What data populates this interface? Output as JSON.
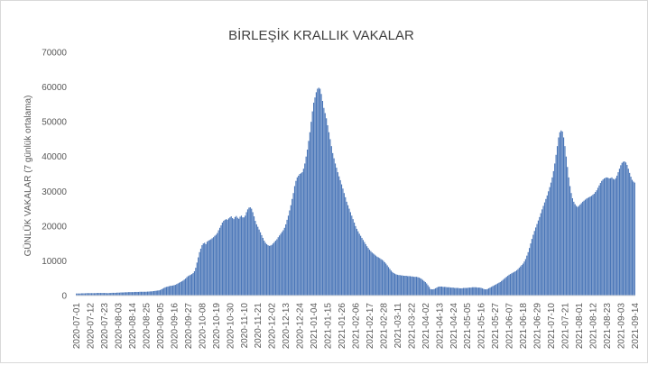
{
  "chart_data": {
    "type": "bar",
    "title": "BİRLEŞİK KRALLIK VAKALAR",
    "y_label": "GÜNLÜK  VAKALAR  (7 günlük ortalama)",
    "color": "#4a76b8",
    "grid": false,
    "ylim": [
      0,
      70000
    ],
    "yticks": [
      0,
      10000,
      20000,
      30000,
      40000,
      50000,
      60000,
      70000
    ],
    "categories": [
      "2020-07-01",
      null,
      null,
      null,
      null,
      null,
      null,
      null,
      null,
      null,
      null,
      "2020-07-12",
      null,
      null,
      null,
      null,
      null,
      null,
      null,
      null,
      null,
      null,
      "2020-07-23",
      null,
      null,
      null,
      null,
      null,
      null,
      null,
      null,
      null,
      null,
      "2020-08-03",
      null,
      null,
      null,
      null,
      null,
      null,
      null,
      null,
      null,
      null,
      "2020-08-14",
      null,
      null,
      null,
      null,
      null,
      null,
      null,
      null,
      null,
      null,
      "2020-08-25",
      null,
      null,
      null,
      null,
      null,
      null,
      null,
      null,
      null,
      null,
      "2020-09-05",
      null,
      null,
      null,
      null,
      null,
      null,
      null,
      null,
      null,
      null,
      "2020-09-16",
      null,
      null,
      null,
      null,
      null,
      null,
      null,
      null,
      null,
      null,
      "2020-09-27",
      null,
      null,
      null,
      null,
      null,
      null,
      null,
      null,
      null,
      null,
      "2020-10-08",
      null,
      null,
      null,
      null,
      null,
      null,
      null,
      null,
      null,
      null,
      "2020-10-19",
      null,
      null,
      null,
      null,
      null,
      null,
      null,
      null,
      null,
      null,
      "2020-10-30",
      null,
      null,
      null,
      null,
      null,
      null,
      null,
      null,
      null,
      null,
      "2020-11-10",
      null,
      null,
      null,
      null,
      null,
      null,
      null,
      null,
      null,
      null,
      "2020-11-21",
      null,
      null,
      null,
      null,
      null,
      null,
      null,
      null,
      null,
      null,
      "2020-12-02",
      null,
      null,
      null,
      null,
      null,
      null,
      null,
      null,
      null,
      null,
      "2020-12-13",
      null,
      null,
      null,
      null,
      null,
      null,
      null,
      null,
      null,
      null,
      "2020-12-24",
      null,
      null,
      null,
      null,
      null,
      null,
      null,
      null,
      null,
      null,
      "2021-01-04",
      null,
      null,
      null,
      null,
      null,
      null,
      null,
      null,
      null,
      null,
      "2021-01-15",
      null,
      null,
      null,
      null,
      null,
      null,
      null,
      null,
      null,
      null,
      "2021-01-26",
      null,
      null,
      null,
      null,
      null,
      null,
      null,
      null,
      null,
      null,
      "2021-02-06",
      null,
      null,
      null,
      null,
      null,
      null,
      null,
      null,
      null,
      null,
      "2021-02-17",
      null,
      null,
      null,
      null,
      null,
      null,
      null,
      null,
      null,
      null,
      "2021-02-28",
      null,
      null,
      null,
      null,
      null,
      null,
      null,
      null,
      null,
      null,
      "2021-03-11",
      null,
      null,
      null,
      null,
      null,
      null,
      null,
      null,
      null,
      null,
      "2021-03-22",
      null,
      null,
      null,
      null,
      null,
      null,
      null,
      null,
      null,
      null,
      "2021-04-02",
      null,
      null,
      null,
      null,
      null,
      null,
      null,
      null,
      null,
      null,
      "2021-04-13",
      null,
      null,
      null,
      null,
      null,
      null,
      null,
      null,
      null,
      null,
      "2021-04-24",
      null,
      null,
      null,
      null,
      null,
      null,
      null,
      null,
      null,
      null,
      "2021-05-05",
      null,
      null,
      null,
      null,
      null,
      null,
      null,
      null,
      null,
      null,
      "2021-05-16",
      null,
      null,
      null,
      null,
      null,
      null,
      null,
      null,
      null,
      null,
      "2021-05-27",
      null,
      null,
      null,
      null,
      null,
      null,
      null,
      null,
      null,
      null,
      "2021-06-07",
      null,
      null,
      null,
      null,
      null,
      null,
      null,
      null,
      null,
      null,
      "2021-06-18",
      null,
      null,
      null,
      null,
      null,
      null,
      null,
      null,
      null,
      null,
      "2021-06-29",
      null,
      null,
      null,
      null,
      null,
      null,
      null,
      null,
      null,
      null,
      "2021-07-10",
      null,
      null,
      null,
      null,
      null,
      null,
      null,
      null,
      null,
      null,
      "2021-07-21",
      null,
      null,
      null,
      null,
      null,
      null,
      null,
      null,
      null,
      null,
      "2021-08-01",
      null,
      null,
      null,
      null,
      null,
      null,
      null,
      null,
      null,
      null,
      "2021-08-12",
      null,
      null,
      null,
      null,
      null,
      null,
      null,
      null,
      null,
      null,
      "2021-08-23",
      null,
      null,
      null,
      null,
      null,
      null,
      null,
      null,
      null,
      null,
      "2021-09-03",
      null,
      null,
      null,
      null,
      null,
      null,
      null,
      null,
      null,
      null,
      "2021-09-14"
    ],
    "values": [
      600,
      600,
      600,
      600,
      650,
      650,
      650,
      650,
      700,
      700,
      700,
      700,
      700,
      700,
      700,
      700,
      750,
      750,
      750,
      750,
      750,
      750,
      750,
      750,
      700,
      700,
      750,
      750,
      800,
      800,
      800,
      800,
      850,
      850,
      850,
      900,
      900,
      900,
      950,
      950,
      950,
      1000,
      1000,
      1000,
      1000,
      1000,
      1050,
      1050,
      1050,
      1050,
      1100,
      1100,
      1100,
      1100,
      1100,
      1100,
      1150,
      1150,
      1200,
      1200,
      1250,
      1300,
      1350,
      1400,
      1450,
      1500,
      1600,
      1800,
      2000,
      2200,
      2400,
      2500,
      2600,
      2700,
      2800,
      2850,
      2900,
      3000,
      3100,
      3300,
      3500,
      3700,
      3900,
      4100,
      4300,
      4600,
      4900,
      5300,
      5600,
      5800,
      6000,
      6200,
      6500,
      7000,
      8000,
      9500,
      11000,
      12500,
      13500,
      14500,
      15000,
      15200,
      14800,
      15500,
      15800,
      16000,
      16200,
      16500,
      16800,
      17200,
      17500,
      18000,
      18800,
      19500,
      20200,
      21000,
      21500,
      21800,
      22000,
      21800,
      22200,
      22500,
      22800,
      22300,
      22000,
      22600,
      22900,
      22400,
      22100,
      22700,
      23000,
      22500,
      22500,
      23000,
      24000,
      24800,
      25300,
      25400,
      25000,
      24000,
      22800,
      21500,
      20500,
      19800,
      19000,
      18200,
      17400,
      16600,
      15800,
      15200,
      14800,
      14500,
      14300,
      14400,
      14600,
      15000,
      15400,
      15800,
      16200,
      16800,
      17300,
      17800,
      18300,
      18800,
      19500,
      20500,
      21800,
      23000,
      24500,
      26000,
      27800,
      29500,
      31500,
      33000,
      34000,
      34500,
      35000,
      35200,
      35500,
      36500,
      38000,
      40000,
      42000,
      44500,
      47000,
      50000,
      53000,
      55500,
      57000,
      58500,
      59500,
      59800,
      59500,
      58000,
      56000,
      54000,
      52500,
      51000,
      49000,
      47000,
      45000,
      43000,
      41000,
      39500,
      38000,
      36800,
      35500,
      34300,
      33200,
      32000,
      30800,
      29500,
      28300,
      27000,
      26000,
      25000,
      24000,
      23000,
      22000,
      21000,
      20000,
      19200,
      18500,
      17800,
      17200,
      16600,
      16000,
      15400,
      14800,
      14200,
      13700,
      13200,
      12800,
      12400,
      12100,
      11800,
      11500,
      11200,
      11000,
      10800,
      10500,
      10300,
      10000,
      9600,
      9200,
      8700,
      8200,
      7700,
      7200,
      6800,
      6500,
      6300,
      6100,
      6000,
      5900,
      5900,
      5800,
      5800,
      5700,
      5700,
      5700,
      5600,
      5600,
      5600,
      5500,
      5500,
      5400,
      5400,
      5400,
      5300,
      5200,
      5000,
      4800,
      4500,
      4200,
      3900,
      3500,
      3000,
      2500,
      1900,
      1800,
      1800,
      1900,
      2100,
      2300,
      2500,
      2600,
      2600,
      2600,
      2500,
      2500,
      2500,
      2400,
      2400,
      2400,
      2300,
      2300,
      2300,
      2200,
      2200,
      2200,
      2200,
      2100,
      2100,
      2100,
      2200,
      2200,
      2200,
      2200,
      2300,
      2300,
      2300,
      2400,
      2400,
      2400,
      2400,
      2300,
      2300,
      2300,
      2200,
      2100,
      1900,
      1800,
      1800,
      1900,
      2100,
      2300,
      2500,
      2700,
      2900,
      3100,
      3300,
      3500,
      3700,
      3900,
      4200,
      4500,
      4800,
      5100,
      5400,
      5700,
      6000,
      6200,
      6400,
      6600,
      6800,
      7000,
      7300,
      7600,
      8000,
      8400,
      8800,
      9200,
      9800,
      10500,
      11500,
      12500,
      13700,
      15000,
      16300,
      17500,
      18600,
      19600,
      20600,
      21600,
      22600,
      23700,
      24800,
      25800,
      26800,
      27800,
      28800,
      30000,
      31200,
      32500,
      34000,
      35800,
      38000,
      40500,
      43000,
      45500,
      47000,
      47500,
      47200,
      45500,
      43000,
      40000,
      37000,
      34000,
      31500,
      29500,
      28000,
      27000,
      26300,
      25800,
      25500,
      25800,
      26200,
      26600,
      27000,
      27300,
      27600,
      27900,
      28100,
      28300,
      28500,
      28700,
      29000,
      29300,
      29800,
      30300,
      31000,
      31700,
      32400,
      33000,
      33400,
      33700,
      33900,
      34000,
      33900,
      33700,
      33800,
      34000,
      33600,
      33400,
      33800,
      34500,
      35500,
      36500,
      37500,
      38200,
      38500,
      38600,
      38300,
      37600,
      36500,
      35300,
      34200,
      33300,
      32800,
      32500
    ]
  }
}
